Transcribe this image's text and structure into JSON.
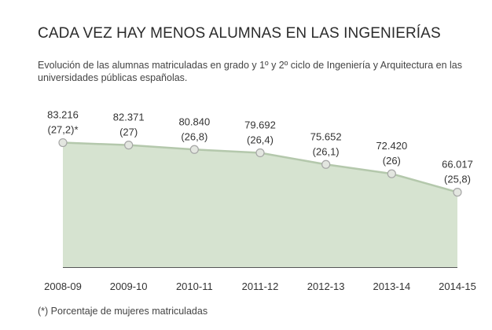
{
  "title": "CADA VEZ HAY MENOS ALUMNAS EN LAS INGENIERÍAS",
  "subtitle": "Evolución de las alumnas matriculadas en grado y 1º y 2º ciclo de Ingeniería y Arquitectura en las universidades públicas españolas.",
  "footnote": "(*) Porcentaje de mujeres matriculadas",
  "colors": {
    "area_fill": "#d6e3d0",
    "line": "#b4c8ac",
    "marker_fill": "#e3e6e0",
    "marker_stroke": "#a6a6a6",
    "baseline": "#555555"
  },
  "chart_data": {
    "type": "area",
    "title": "CADA VEZ HAY MENOS ALUMNAS EN LAS INGENIERÍAS",
    "x": [
      "2008-09",
      "2009-10",
      "2010-11",
      "2011-12",
      "2012-13",
      "2013-14",
      "2014-15"
    ],
    "series": [
      {
        "values": [
          83216,
          82371,
          80840,
          79692,
          75652,
          72420,
          66017
        ],
        "value_labels": [
          "83.216",
          "82.371",
          "80.840",
          "79.692",
          "75.652",
          "72.420",
          "66.017"
        ],
        "percent_labels": [
          "(27,2)*",
          "(27)",
          "(26,8)",
          "(26,4)",
          "(26,1)",
          "(26)",
          "(25,8)"
        ]
      }
    ],
    "ylim": [
      40000,
      85000
    ],
    "grid": false,
    "legend": "none"
  }
}
